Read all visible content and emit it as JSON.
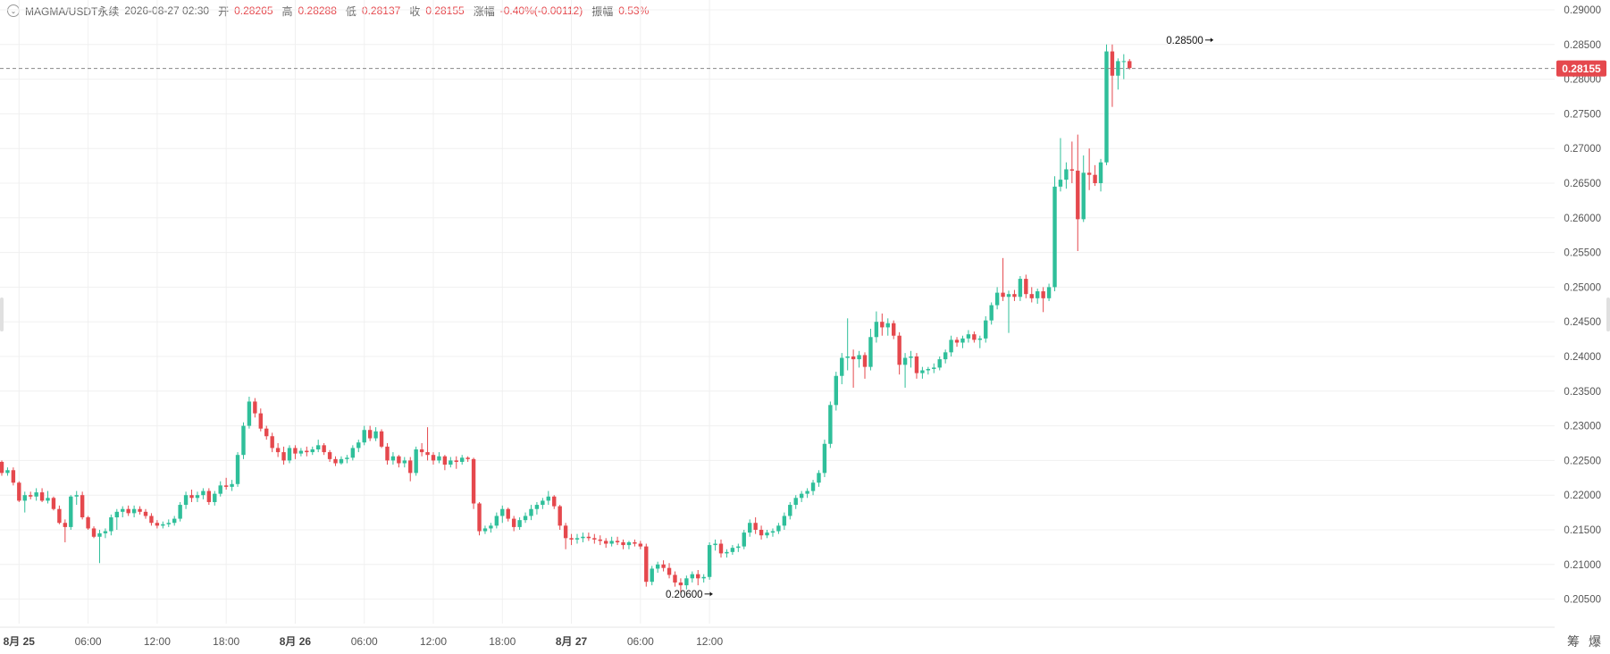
{
  "legend": {
    "symbol": "MAGMA/USDT永续",
    "time": "2026-08-27 02:30",
    "open_label": "开",
    "open": "0.28265",
    "high_label": "高",
    "high": "0.28288",
    "low_label": "低",
    "low": "0.28137",
    "close_label": "收",
    "close": "0.28155",
    "change_label": "涨幅",
    "change": "-0.40%(-0.00112)",
    "amplitude_label": "振幅",
    "amplitude": "0.53%"
  },
  "colors": {
    "up": "#26a69a",
    "up_fill": "#2fbf9a",
    "down": "#e5484d",
    "grid": "#f0f0f0",
    "price_line": "#888888",
    "price_tag": "#e5484d"
  },
  "bottom_icons": [
    "筹",
    "爆"
  ],
  "chart_data": {
    "type": "candlestick",
    "title": "",
    "y_axis": {
      "min": 0.2025,
      "max": 0.29,
      "ticks": [
        "0.20500",
        "0.21000",
        "0.21500",
        "0.22000",
        "0.22500",
        "0.23000",
        "0.23500",
        "0.24000",
        "0.24500",
        "0.25000",
        "0.25500",
        "0.26000",
        "0.26500",
        "0.27000",
        "0.27500",
        "0.28000",
        "0.28500",
        "0.29000"
      ]
    },
    "x_axis": {
      "ticks": [
        {
          "label": "8月 25",
          "bold": true
        },
        {
          "label": "06:00",
          "bold": false
        },
        {
          "label": "12:00",
          "bold": false
        },
        {
          "label": "18:00",
          "bold": false
        },
        {
          "label": "8月 26",
          "bold": true
        },
        {
          "label": "06:00",
          "bold": false
        },
        {
          "label": "12:00",
          "bold": false
        },
        {
          "label": "18:00",
          "bold": false
        },
        {
          "label": "8月 27",
          "bold": true
        },
        {
          "label": "06:00",
          "bold": false
        },
        {
          "label": "12:00",
          "bold": false
        }
      ],
      "interval": "30m",
      "first_tick_index": 3
    },
    "current_price": "0.28155",
    "annotations": [
      {
        "label": "0.28500",
        "index": 211,
        "price": 0.285,
        "kind": "high"
      },
      {
        "label": "0.20600",
        "index": 124,
        "price": 0.206,
        "kind": "low"
      }
    ],
    "candles": [
      [
        0.2248,
        0.225,
        0.2228,
        0.2232
      ],
      [
        0.2232,
        0.224,
        0.2228,
        0.2236
      ],
      [
        0.2236,
        0.224,
        0.2214,
        0.2218
      ],
      [
        0.2218,
        0.222,
        0.219,
        0.2192
      ],
      [
        0.2192,
        0.2205,
        0.2175,
        0.22
      ],
      [
        0.22,
        0.2205,
        0.2194,
        0.2198
      ],
      [
        0.2198,
        0.221,
        0.2192,
        0.2204
      ],
      [
        0.2204,
        0.221,
        0.219,
        0.2192
      ],
      [
        0.2192,
        0.2206,
        0.2188,
        0.2196
      ],
      [
        0.2196,
        0.2198,
        0.2178,
        0.218
      ],
      [
        0.218,
        0.2185,
        0.2158,
        0.216
      ],
      [
        0.216,
        0.2165,
        0.2132,
        0.2154
      ],
      [
        0.2154,
        0.22,
        0.215,
        0.2198
      ],
      [
        0.2198,
        0.2206,
        0.2186,
        0.22
      ],
      [
        0.22,
        0.2205,
        0.2165,
        0.2168
      ],
      [
        0.2168,
        0.217,
        0.215,
        0.2152
      ],
      [
        0.2152,
        0.2155,
        0.2138,
        0.214
      ],
      [
        0.214,
        0.215,
        0.2102,
        0.2145
      ],
      [
        0.2145,
        0.2152,
        0.2138,
        0.2148
      ],
      [
        0.2148,
        0.2172,
        0.2142,
        0.2168
      ],
      [
        0.2168,
        0.218,
        0.215,
        0.2176
      ],
      [
        0.2176,
        0.2184,
        0.2168,
        0.218
      ],
      [
        0.218,
        0.2185,
        0.217,
        0.2174
      ],
      [
        0.2174,
        0.2185,
        0.2168,
        0.218
      ],
      [
        0.218,
        0.2184,
        0.2172,
        0.2176
      ],
      [
        0.2176,
        0.218,
        0.2166,
        0.217
      ],
      [
        0.217,
        0.2174,
        0.2156,
        0.216
      ],
      [
        0.216,
        0.2164,
        0.2152,
        0.2156
      ],
      [
        0.2156,
        0.2162,
        0.2152,
        0.2158
      ],
      [
        0.2158,
        0.2165,
        0.2154,
        0.216
      ],
      [
        0.216,
        0.217,
        0.2156,
        0.2166
      ],
      [
        0.2166,
        0.219,
        0.2162,
        0.2186
      ],
      [
        0.2186,
        0.2205,
        0.218,
        0.22
      ],
      [
        0.22,
        0.2208,
        0.219,
        0.2196
      ],
      [
        0.2196,
        0.2205,
        0.219,
        0.22
      ],
      [
        0.22,
        0.221,
        0.2194,
        0.2206
      ],
      [
        0.2206,
        0.221,
        0.2186,
        0.219
      ],
      [
        0.219,
        0.2206,
        0.2185,
        0.2202
      ],
      [
        0.2202,
        0.222,
        0.2198,
        0.2214
      ],
      [
        0.2214,
        0.2225,
        0.2208,
        0.2212
      ],
      [
        0.2212,
        0.2222,
        0.2206,
        0.2216
      ],
      [
        0.2216,
        0.2262,
        0.2212,
        0.2258
      ],
      [
        0.2258,
        0.2305,
        0.2252,
        0.23
      ],
      [
        0.23,
        0.2342,
        0.2296,
        0.2335
      ],
      [
        0.2335,
        0.234,
        0.2312,
        0.2318
      ],
      [
        0.2318,
        0.2325,
        0.2292,
        0.2296
      ],
      [
        0.2296,
        0.23,
        0.228,
        0.2285
      ],
      [
        0.2285,
        0.229,
        0.2262,
        0.2268
      ],
      [
        0.2268,
        0.2275,
        0.2255,
        0.2262
      ],
      [
        0.2262,
        0.227,
        0.2244,
        0.225
      ],
      [
        0.225,
        0.2272,
        0.2246,
        0.2268
      ],
      [
        0.2268,
        0.2272,
        0.2252,
        0.226
      ],
      [
        0.226,
        0.2268,
        0.2256,
        0.2264
      ],
      [
        0.2264,
        0.227,
        0.2256,
        0.2262
      ],
      [
        0.2262,
        0.227,
        0.2258,
        0.2266
      ],
      [
        0.2266,
        0.228,
        0.2262,
        0.2272
      ],
      [
        0.2272,
        0.2275,
        0.2258,
        0.2262
      ],
      [
        0.2262,
        0.2265,
        0.2248,
        0.2252
      ],
      [
        0.2252,
        0.2256,
        0.2242,
        0.2246
      ],
      [
        0.2246,
        0.2256,
        0.2244,
        0.2252
      ],
      [
        0.2252,
        0.2258,
        0.2246,
        0.2254
      ],
      [
        0.2254,
        0.2272,
        0.225,
        0.2268
      ],
      [
        0.2268,
        0.228,
        0.2262,
        0.2276
      ],
      [
        0.2276,
        0.23,
        0.2272,
        0.2294
      ],
      [
        0.2294,
        0.23,
        0.2278,
        0.2282
      ],
      [
        0.2282,
        0.2298,
        0.2278,
        0.2292
      ],
      [
        0.2292,
        0.2295,
        0.2268,
        0.227
      ],
      [
        0.227,
        0.2275,
        0.2244,
        0.225
      ],
      [
        0.225,
        0.2262,
        0.2244,
        0.2256
      ],
      [
        0.2256,
        0.2258,
        0.224,
        0.2246
      ],
      [
        0.2246,
        0.2255,
        0.224,
        0.225
      ],
      [
        0.225,
        0.2255,
        0.222,
        0.2232
      ],
      [
        0.2232,
        0.227,
        0.2228,
        0.2266
      ],
      [
        0.2266,
        0.2275,
        0.2256,
        0.2262
      ],
      [
        0.2262,
        0.2298,
        0.225,
        0.2258
      ],
      [
        0.2258,
        0.2262,
        0.2244,
        0.225
      ],
      [
        0.225,
        0.2262,
        0.2246,
        0.2256
      ],
      [
        0.2256,
        0.2258,
        0.2236,
        0.2244
      ],
      [
        0.2244,
        0.2255,
        0.224,
        0.225
      ],
      [
        0.225,
        0.2256,
        0.2238,
        0.2248
      ],
      [
        0.2248,
        0.2258,
        0.2244,
        0.2254
      ],
      [
        0.2254,
        0.2256,
        0.2248,
        0.2252
      ],
      [
        0.2252,
        0.2254,
        0.218,
        0.2188
      ],
      [
        0.2188,
        0.219,
        0.2142,
        0.2148
      ],
      [
        0.2148,
        0.2156,
        0.2144,
        0.2152
      ],
      [
        0.2152,
        0.216,
        0.2146,
        0.2156
      ],
      [
        0.2156,
        0.2175,
        0.2152,
        0.217
      ],
      [
        0.217,
        0.2185,
        0.216,
        0.218
      ],
      [
        0.218,
        0.2182,
        0.2162,
        0.2166
      ],
      [
        0.2166,
        0.217,
        0.2148,
        0.2154
      ],
      [
        0.2154,
        0.2168,
        0.215,
        0.2164
      ],
      [
        0.2164,
        0.2175,
        0.216,
        0.217
      ],
      [
        0.217,
        0.2186,
        0.2164,
        0.218
      ],
      [
        0.218,
        0.219,
        0.2172,
        0.2186
      ],
      [
        0.2186,
        0.2196,
        0.218,
        0.2192
      ],
      [
        0.2192,
        0.2206,
        0.2186,
        0.2198
      ],
      [
        0.2198,
        0.22,
        0.218,
        0.2184
      ],
      [
        0.2184,
        0.2186,
        0.215,
        0.2156
      ],
      [
        0.2156,
        0.216,
        0.2122,
        0.2138
      ],
      [
        0.2138,
        0.2144,
        0.2128,
        0.2136
      ],
      [
        0.2136,
        0.2144,
        0.213,
        0.2138
      ],
      [
        0.2138,
        0.2146,
        0.2132,
        0.214
      ],
      [
        0.214,
        0.2146,
        0.2134,
        0.2138
      ],
      [
        0.2138,
        0.2144,
        0.213,
        0.2136
      ],
      [
        0.2136,
        0.2142,
        0.2128,
        0.2134
      ],
      [
        0.2134,
        0.2138,
        0.2124,
        0.213
      ],
      [
        0.213,
        0.214,
        0.2126,
        0.2134
      ],
      [
        0.2134,
        0.214,
        0.2128,
        0.2132
      ],
      [
        0.2132,
        0.2136,
        0.2122,
        0.2128
      ],
      [
        0.2128,
        0.2134,
        0.2122,
        0.2132
      ],
      [
        0.2132,
        0.2136,
        0.2126,
        0.213
      ],
      [
        0.213,
        0.2134,
        0.2122,
        0.2126
      ],
      [
        0.2126,
        0.213,
        0.2068,
        0.2075
      ],
      [
        0.2075,
        0.2098,
        0.207,
        0.2094
      ],
      [
        0.2094,
        0.2104,
        0.2088,
        0.21
      ],
      [
        0.21,
        0.2106,
        0.209,
        0.2095
      ],
      [
        0.2095,
        0.2102,
        0.208,
        0.2085
      ],
      [
        0.2085,
        0.209,
        0.2068,
        0.2074
      ],
      [
        0.2074,
        0.208,
        0.206,
        0.207
      ],
      [
        0.207,
        0.2084,
        0.2064,
        0.208
      ],
      [
        0.208,
        0.209,
        0.2074,
        0.2086
      ],
      [
        0.2086,
        0.2092,
        0.207,
        0.208
      ],
      [
        0.208,
        0.2086,
        0.2074,
        0.2082
      ],
      [
        0.2082,
        0.2132,
        0.2078,
        0.2128
      ],
      [
        0.2128,
        0.2136,
        0.212,
        0.213
      ],
      [
        0.213,
        0.2136,
        0.211,
        0.2116
      ],
      [
        0.2116,
        0.2122,
        0.211,
        0.2118
      ],
      [
        0.2118,
        0.2128,
        0.2114,
        0.2124
      ],
      [
        0.2124,
        0.213,
        0.2118,
        0.2126
      ],
      [
        0.2126,
        0.215,
        0.2122,
        0.2146
      ],
      [
        0.2146,
        0.2165,
        0.214,
        0.216
      ],
      [
        0.216,
        0.2168,
        0.2144,
        0.215
      ],
      [
        0.215,
        0.2156,
        0.2136,
        0.2142
      ],
      [
        0.2142,
        0.215,
        0.2138,
        0.2146
      ],
      [
        0.2146,
        0.2152,
        0.214,
        0.2148
      ],
      [
        0.2148,
        0.216,
        0.2144,
        0.2156
      ],
      [
        0.2156,
        0.2175,
        0.215,
        0.217
      ],
      [
        0.217,
        0.219,
        0.2165,
        0.2186
      ],
      [
        0.2186,
        0.22,
        0.218,
        0.2196
      ],
      [
        0.2196,
        0.2206,
        0.219,
        0.2202
      ],
      [
        0.2202,
        0.221,
        0.2196,
        0.2206
      ],
      [
        0.2206,
        0.2222,
        0.22,
        0.2218
      ],
      [
        0.2218,
        0.2236,
        0.2212,
        0.2232
      ],
      [
        0.2232,
        0.228,
        0.2226,
        0.2274
      ],
      [
        0.2274,
        0.2335,
        0.2268,
        0.233
      ],
      [
        0.233,
        0.2378,
        0.2322,
        0.2372
      ],
      [
        0.2372,
        0.2405,
        0.236,
        0.2398
      ],
      [
        0.2398,
        0.2455,
        0.238,
        0.24
      ],
      [
        0.24,
        0.241,
        0.2355,
        0.2396
      ],
      [
        0.2396,
        0.2408,
        0.2384,
        0.2402
      ],
      [
        0.2402,
        0.2406,
        0.2368,
        0.2385
      ],
      [
        0.2385,
        0.244,
        0.238,
        0.2428
      ],
      [
        0.2428,
        0.2465,
        0.242,
        0.245
      ],
      [
        0.245,
        0.2462,
        0.243,
        0.2442
      ],
      [
        0.2442,
        0.2455,
        0.243,
        0.2448
      ],
      [
        0.2448,
        0.2452,
        0.2425,
        0.243
      ],
      [
        0.243,
        0.2435,
        0.2374,
        0.2388
      ],
      [
        0.2388,
        0.2405,
        0.2355,
        0.2398
      ],
      [
        0.2398,
        0.2408,
        0.2384,
        0.24
      ],
      [
        0.24,
        0.2405,
        0.2368,
        0.2376
      ],
      [
        0.2376,
        0.2385,
        0.2368,
        0.238
      ],
      [
        0.238,
        0.2385,
        0.2374,
        0.2382
      ],
      [
        0.2382,
        0.239,
        0.2376,
        0.2384
      ],
      [
        0.2384,
        0.24,
        0.238,
        0.2396
      ],
      [
        0.2396,
        0.241,
        0.239,
        0.2406
      ],
      [
        0.2406,
        0.243,
        0.24,
        0.2424
      ],
      [
        0.2424,
        0.2428,
        0.2414,
        0.242
      ],
      [
        0.242,
        0.243,
        0.2412,
        0.2426
      ],
      [
        0.2426,
        0.2438,
        0.242,
        0.2432
      ],
      [
        0.2432,
        0.2436,
        0.242,
        0.2424
      ],
      [
        0.2424,
        0.243,
        0.2412,
        0.2426
      ],
      [
        0.2426,
        0.2458,
        0.242,
        0.2452
      ],
      [
        0.2452,
        0.2478,
        0.2446,
        0.2474
      ],
      [
        0.2474,
        0.25,
        0.2468,
        0.2492
      ],
      [
        0.2492,
        0.2542,
        0.248,
        0.2486
      ],
      [
        0.2486,
        0.2495,
        0.2434,
        0.249
      ],
      [
        0.249,
        0.2496,
        0.248,
        0.2486
      ],
      [
        0.2486,
        0.2516,
        0.248,
        0.2512
      ],
      [
        0.2512,
        0.2518,
        0.2484,
        0.249
      ],
      [
        0.249,
        0.25,
        0.2478,
        0.2484
      ],
      [
        0.2484,
        0.2498,
        0.2476,
        0.2494
      ],
      [
        0.2494,
        0.25,
        0.2464,
        0.2484
      ],
      [
        0.2484,
        0.2505,
        0.248,
        0.25
      ],
      [
        0.25,
        0.266,
        0.2494,
        0.2645
      ],
      [
        0.2645,
        0.2715,
        0.2638,
        0.2655
      ],
      [
        0.2655,
        0.268,
        0.2642,
        0.267
      ],
      [
        0.267,
        0.271,
        0.265,
        0.2668
      ],
      [
        0.2668,
        0.272,
        0.2552,
        0.2598
      ],
      [
        0.2598,
        0.269,
        0.2594,
        0.2665
      ],
      [
        0.2665,
        0.27,
        0.264,
        0.2662
      ],
      [
        0.2662,
        0.2676,
        0.2646,
        0.265
      ],
      [
        0.265,
        0.2685,
        0.2638,
        0.268
      ],
      [
        0.268,
        0.285,
        0.2676,
        0.284
      ],
      [
        0.284,
        0.285,
        0.276,
        0.2805
      ],
      [
        0.2805,
        0.283,
        0.2785,
        0.2826
      ],
      [
        0.2826,
        0.2836,
        0.28,
        0.2826
      ],
      [
        0.2826,
        0.2829,
        0.2814,
        0.2816
      ]
    ]
  }
}
